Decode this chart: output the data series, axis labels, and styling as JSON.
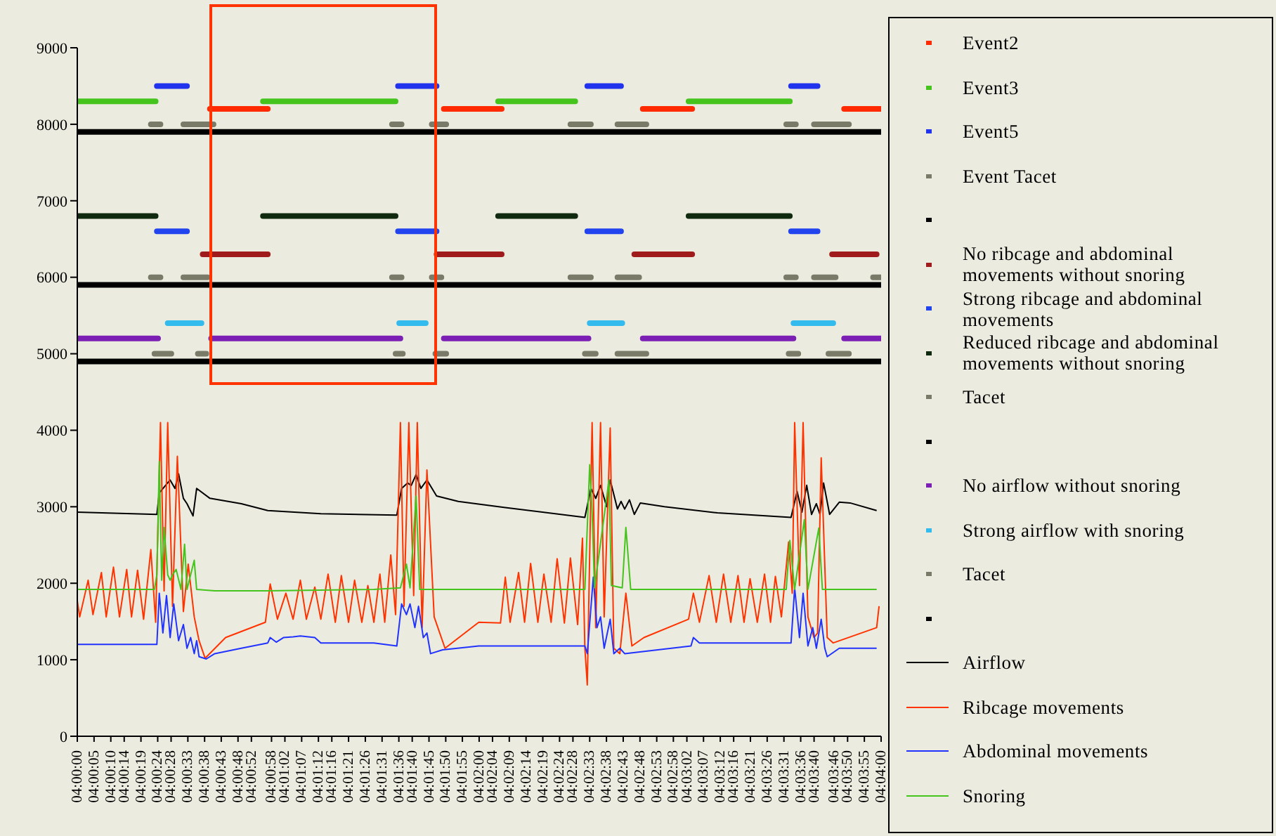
{
  "chart_data": {
    "type": "line",
    "xlim": [
      4.0,
      4.06667
    ],
    "xticks": [
      {
        "value": 4.0,
        "label": "04:00:00"
      },
      {
        "value": 4.00139,
        "label": "04:00:05"
      },
      {
        "value": 4.00278,
        "label": "04:00:10"
      },
      {
        "value": 4.00389,
        "label": "04:00:14"
      },
      {
        "value": 4.00528,
        "label": "04:00:19"
      },
      {
        "value": 4.00667,
        "label": "04:00:24"
      },
      {
        "value": 4.00778,
        "label": "04:00:28"
      },
      {
        "value": 4.00917,
        "label": "04:00:33"
      },
      {
        "value": 4.01056,
        "label": "04:00:38"
      },
      {
        "value": 4.01194,
        "label": "04:00:43"
      },
      {
        "value": 4.01333,
        "label": "04:00:48"
      },
      {
        "value": 4.01444,
        "label": "04:00:52"
      },
      {
        "value": 4.01611,
        "label": "04:00:58"
      },
      {
        "value": 4.01722,
        "label": "04:01:02"
      },
      {
        "value": 4.01861,
        "label": "04:01:07"
      },
      {
        "value": 4.02,
        "label": "04:01:12"
      },
      {
        "value": 4.02111,
        "label": "04:01:16"
      },
      {
        "value": 4.0225,
        "label": "04:01:21"
      },
      {
        "value": 4.02389,
        "label": "04:01:26"
      },
      {
        "value": 4.02528,
        "label": "04:01:31"
      },
      {
        "value": 4.02667,
        "label": "04:01:36"
      },
      {
        "value": 4.02778,
        "label": "04:01:40"
      },
      {
        "value": 4.02917,
        "label": "04:01:45"
      },
      {
        "value": 4.03056,
        "label": "04:01:50"
      },
      {
        "value": 4.03194,
        "label": "04:01:55"
      },
      {
        "value": 4.03333,
        "label": "04:02:00"
      },
      {
        "value": 4.03444,
        "label": "04:02:04"
      },
      {
        "value": 4.03583,
        "label": "04:02:09"
      },
      {
        "value": 4.03722,
        "label": "04:02:14"
      },
      {
        "value": 4.03861,
        "label": "04:02:19"
      },
      {
        "value": 4.04,
        "label": "04:02:24"
      },
      {
        "value": 4.04111,
        "label": "04:02:28"
      },
      {
        "value": 4.0425,
        "label": "04:02:33"
      },
      {
        "value": 4.04389,
        "label": "04:02:38"
      },
      {
        "value": 4.04528,
        "label": "04:02:43"
      },
      {
        "value": 4.04667,
        "label": "04:02:48"
      },
      {
        "value": 4.04806,
        "label": "04:02:53"
      },
      {
        "value": 4.04944,
        "label": "04:02:58"
      },
      {
        "value": 4.05056,
        "label": "04:03:02"
      },
      {
        "value": 4.05194,
        "label": "04:03:07"
      },
      {
        "value": 4.05333,
        "label": "04:03:12"
      },
      {
        "value": 4.05444,
        "label": "04:03:16"
      },
      {
        "value": 4.05583,
        "label": "04:03:21"
      },
      {
        "value": 4.05722,
        "label": "04:03:26"
      },
      {
        "value": 4.05861,
        "label": "04:03:31"
      },
      {
        "value": 4.06,
        "label": "04:03:36"
      },
      {
        "value": 4.06111,
        "label": "04:03:40"
      },
      {
        "value": 4.06278,
        "label": "04:03:46"
      },
      {
        "value": 4.06389,
        "label": "04:03:50"
      },
      {
        "value": 4.06528,
        "label": "04:03:55"
      },
      {
        "value": 4.06667,
        "label": "04:04:00"
      }
    ],
    "ylim": [
      0,
      9000
    ],
    "yticks": [
      0,
      1000,
      2000,
      3000,
      4000,
      5000,
      6000,
      7000,
      8000,
      9000
    ],
    "legend": "right",
    "series": [
      {
        "name": "Event2",
        "color": "#ff2a00",
        "x": [
          4.011,
          4.0158,
          null,
          4.0304,
          4.0352,
          null,
          4.0469,
          4.051,
          null,
          4.0636,
          4.06667
        ],
        "values": [
          8200,
          8200,
          null,
          8200,
          8200,
          null,
          8200,
          8200,
          null,
          8200,
          8200
        ]
      },
      {
        "name": "Event3",
        "color": "#44c41c",
        "x": [
          4.0,
          4.0065,
          null,
          4.0154,
          4.0264,
          null,
          4.0349,
          4.0413,
          null,
          4.0507,
          4.0591
        ],
        "values": [
          8300,
          8300,
          null,
          8300,
          8300,
          null,
          8300,
          8300,
          null,
          8300,
          8300
        ]
      },
      {
        "name": "Event5",
        "color": "#2233ee",
        "x": [
          4.0066,
          4.0091,
          null,
          4.0266,
          4.0298,
          null,
          4.0423,
          4.0451,
          null,
          4.0592,
          4.0614
        ],
        "values": [
          8500,
          8500,
          null,
          8500,
          8500,
          null,
          8500,
          8500,
          null,
          8500,
          8500
        ]
      },
      {
        "name": "Event Tacet",
        "color": "#7a7a68",
        "x": [
          4.0061,
          4.0069,
          null,
          4.0088,
          4.0113,
          null,
          4.0261,
          4.0269,
          null,
          4.0294,
          4.0306,
          null,
          4.0409,
          4.0426,
          null,
          4.0448,
          4.0472,
          null,
          4.0588,
          4.0596,
          null,
          4.0611,
          4.064
        ],
        "values": [
          8000,
          8000,
          null,
          8000,
          8000,
          null,
          8000,
          8000,
          null,
          8000,
          8000,
          null,
          8000,
          8000,
          null,
          8000,
          8000,
          null,
          8000,
          8000,
          null,
          8000,
          8000
        ]
      },
      {
        "color": "#000000",
        "x": [
          4.0,
          4.06667
        ],
        "values": [
          7900,
          7900
        ]
      },
      {
        "name": "No ribcage and abdominal movements without snoring",
        "color": "#a01c1c",
        "x": [
          4.0104,
          4.0158,
          null,
          4.0298,
          4.0352,
          null,
          4.0462,
          4.051,
          null,
          4.0626,
          4.0663
        ],
        "values": [
          6300,
          6300,
          null,
          6300,
          6300,
          null,
          6300,
          6300,
          null,
          6300,
          6300
        ]
      },
      {
        "name": "Strong ribcage and abdominal movements",
        "color": "#2244ee",
        "x": [
          4.0066,
          4.0091,
          null,
          4.0266,
          4.0298,
          null,
          4.0423,
          4.0451,
          null,
          4.0592,
          4.0614
        ],
        "values": [
          6600,
          6600,
          null,
          6600,
          6600,
          null,
          6600,
          6600,
          null,
          6600,
          6600
        ]
      },
      {
        "name": "Reduced ribcage and abdominal movements without snoring",
        "color": "#0f2a0f",
        "x": [
          4.0,
          4.0065,
          null,
          4.0154,
          4.0264,
          null,
          4.0349,
          4.0413,
          null,
          4.0507,
          4.0591
        ],
        "values": [
          6800,
          6800,
          null,
          6800,
          6800,
          null,
          6800,
          6800,
          null,
          6800,
          6800
        ]
      },
      {
        "name": "Tacet",
        "color": "#7a7a68",
        "x": [
          4.0061,
          4.0069,
          null,
          4.0088,
          4.0108,
          null,
          4.0261,
          4.0269,
          null,
          4.0294,
          4.0302,
          null,
          4.0409,
          4.0426,
          null,
          4.0448,
          4.0466,
          null,
          4.0588,
          4.0596,
          null,
          4.0611,
          4.0629,
          null,
          4.066,
          4.06667
        ],
        "values": [
          6000,
          6000,
          null,
          6000,
          6000,
          null,
          6000,
          6000,
          null,
          6000,
          6000,
          null,
          6000,
          6000,
          null,
          6000,
          6000,
          null,
          6000,
          6000,
          null,
          6000,
          6000,
          null,
          6000,
          6000
        ]
      },
      {
        "color": "#000000",
        "x": [
          4.0,
          4.06667
        ],
        "values": [
          5900,
          5900
        ]
      },
      {
        "name": "No airflow without snoring",
        "color": "#7b1fb5",
        "x": [
          4.0,
          4.0067,
          null,
          4.0111,
          4.0268,
          null,
          4.0304,
          4.0424,
          null,
          4.0469,
          4.0594,
          null,
          4.0636,
          4.06667
        ],
        "values": [
          5200,
          5200,
          null,
          5200,
          5200,
          null,
          5200,
          5200,
          null,
          5200,
          5200,
          null,
          5200,
          5200
        ]
      },
      {
        "name": "Strong airflow with snoring",
        "color": "#33bbee",
        "x": [
          4.0075,
          4.0103,
          null,
          4.0267,
          4.0289,
          null,
          4.0425,
          4.0452,
          null,
          4.0594,
          4.0627
        ],
        "values": [
          5400,
          5400,
          null,
          5400,
          5400,
          null,
          5400,
          5400,
          null,
          5400,
          5400
        ]
      },
      {
        "name": "Tacet",
        "color": "#7a7a68",
        "x": [
          4.0064,
          4.0078,
          null,
          4.01,
          4.0107,
          null,
          4.0264,
          4.027,
          null,
          4.0297,
          4.0306,
          null,
          4.0421,
          4.043,
          null,
          4.0448,
          4.0472,
          null,
          4.059,
          4.0598,
          null,
          4.0623,
          4.064
        ],
        "values": [
          5000,
          5000,
          null,
          5000,
          5000,
          null,
          5000,
          5000,
          null,
          5000,
          5000,
          null,
          5000,
          5000,
          null,
          5000,
          5000,
          null,
          5000,
          5000,
          null,
          5000,
          5000
        ]
      },
      {
        "color": "#000000",
        "x": [
          4.0,
          4.06667
        ],
        "values": [
          4900,
          4900
        ]
      },
      {
        "name": "Airflow",
        "color": "#000000",
        "x": [
          4.0,
          4.0066,
          4.0068,
          4.0077,
          4.0081,
          4.0084,
          4.0088,
          4.0091,
          4.0096,
          4.0099,
          4.011,
          4.0136,
          4.0158,
          4.0202,
          4.0265,
          4.0269,
          4.0274,
          4.0277,
          4.0281,
          4.0285,
          4.029,
          4.0298,
          4.0316,
          4.0355,
          4.0421,
          4.0426,
          4.043,
          4.0434,
          4.0439,
          4.0442,
          4.0448,
          4.0451,
          4.0454,
          4.0458,
          4.0462,
          4.0467,
          4.0487,
          4.0531,
          4.0592,
          4.0597,
          4.0601,
          4.0605,
          4.0609,
          4.0613,
          4.0616,
          4.0619,
          4.0624,
          4.0632,
          4.0641,
          4.0663
        ],
        "values": [
          2930,
          2900,
          3180,
          3350,
          3240,
          3430,
          3110,
          3040,
          2880,
          3240,
          3110,
          3040,
          2950,
          2910,
          2890,
          3240,
          3310,
          3280,
          3420,
          3240,
          3350,
          3140,
          3070,
          2990,
          2860,
          3240,
          3110,
          3280,
          3000,
          3350,
          2970,
          3070,
          2970,
          3090,
          2900,
          3050,
          3000,
          2920,
          2860,
          3200,
          2930,
          3280,
          2900,
          3040,
          2900,
          3310,
          2900,
          3060,
          3050,
          2950
        ]
      },
      {
        "name": "Ribcage movements",
        "color": "#ff3300",
        "x": [
          4.0,
          4.0002,
          4.0009,
          4.0013,
          4.002,
          4.0024,
          4.003,
          4.0035,
          4.0041,
          4.0045,
          4.005,
          4.0055,
          4.0061,
          4.0065,
          4.0069,
          4.0072,
          4.0075,
          4.0079,
          4.0083,
          4.0088,
          4.0092,
          4.0097,
          4.0101,
          4.0106,
          4.0123,
          4.0156,
          4.016,
          4.0166,
          4.0173,
          4.0179,
          4.0185,
          4.019,
          4.0197,
          4.0202,
          4.0208,
          4.0214,
          4.0219,
          4.0225,
          4.023,
          4.0236,
          4.0241,
          4.0246,
          4.0251,
          4.0255,
          4.026,
          4.0264,
          4.0268,
          4.0271,
          4.0275,
          4.0279,
          4.0282,
          4.0286,
          4.029,
          4.0296,
          4.0305,
          4.0333,
          4.0351,
          4.0355,
          4.0359,
          4.0366,
          4.0371,
          4.0376,
          4.0382,
          4.0387,
          4.0393,
          4.0398,
          4.0404,
          4.0409,
          4.0415,
          4.0419,
          4.0421,
          4.0423,
          4.0427,
          4.043,
          4.0434,
          4.0437,
          4.0442,
          4.0445,
          4.045,
          4.0455,
          4.046,
          4.047,
          4.0507,
          4.0511,
          4.0516,
          4.0524,
          4.053,
          4.0536,
          4.0542,
          4.0548,
          4.0553,
          4.0558,
          4.0564,
          4.057,
          4.0575,
          4.0579,
          4.0584,
          4.059,
          4.0593,
          4.0595,
          4.0599,
          4.0602,
          4.0606,
          4.0611,
          4.0614,
          4.0617,
          4.0622,
          4.0627,
          4.0663,
          4.0665
        ],
        "values": [
          1770,
          1560,
          2040,
          1590,
          2140,
          1560,
          2210,
          1560,
          2180,
          1560,
          2170,
          1530,
          2440,
          1490,
          4100,
          1900,
          4100,
          1700,
          3660,
          1630,
          2250,
          1560,
          1250,
          1020,
          1290,
          1490,
          1990,
          1530,
          1870,
          1530,
          2040,
          1530,
          1950,
          1530,
          2120,
          1490,
          2100,
          1490,
          2040,
          1490,
          1970,
          1490,
          2120,
          1490,
          2370,
          1590,
          4100,
          1700,
          4100,
          1840,
          4100,
          1420,
          3480,
          1560,
          1150,
          1490,
          1480,
          2080,
          1490,
          2140,
          1490,
          2260,
          1490,
          2120,
          1490,
          2320,
          1480,
          2330,
          1460,
          2590,
          1150,
          670,
          4100,
          1420,
          4100,
          1560,
          4030,
          1150,
          1080,
          1870,
          1180,
          1290,
          1530,
          1870,
          1490,
          2100,
          1490,
          2120,
          1490,
          2100,
          1490,
          2060,
          1490,
          2120,
          1490,
          2090,
          1560,
          2540,
          1870,
          4100,
          1970,
          4100,
          1560,
          1290,
          1350,
          3640,
          1290,
          1220,
          1420,
          1700
        ]
      },
      {
        "name": "Abdominal movements",
        "color": "#2233ff",
        "x": [
          4.0,
          4.0066,
          4.0068,
          4.0071,
          4.0074,
          4.0077,
          4.008,
          4.0084,
          4.0088,
          4.0091,
          4.0094,
          4.0097,
          4.0099,
          4.0101,
          4.0107,
          4.0114,
          4.0136,
          4.0158,
          4.016,
          4.0165,
          4.0171,
          4.0179,
          4.0185,
          4.0197,
          4.0202,
          4.0246,
          4.0265,
          4.0269,
          4.0273,
          4.0276,
          4.028,
          4.0283,
          4.0287,
          4.029,
          4.0293,
          4.0303,
          4.0333,
          4.0421,
          4.0423,
          4.0428,
          4.0431,
          4.0434,
          4.0437,
          4.0442,
          4.0445,
          4.045,
          4.0454,
          4.0509,
          4.0511,
          4.0516,
          4.0592,
          4.0595,
          4.0599,
          4.0602,
          4.0606,
          4.061,
          4.0613,
          4.0617,
          4.062,
          4.0622,
          4.0632,
          4.0663
        ],
        "values": [
          1200,
          1200,
          1870,
          1350,
          1840,
          1290,
          1730,
          1250,
          1460,
          1150,
          1290,
          1080,
          1250,
          1040,
          1010,
          1080,
          1150,
          1220,
          1290,
          1230,
          1290,
          1300,
          1310,
          1290,
          1220,
          1220,
          1180,
          1730,
          1590,
          1730,
          1420,
          1700,
          1290,
          1350,
          1080,
          1130,
          1180,
          1180,
          1080,
          2080,
          1420,
          1560,
          1150,
          1530,
          1080,
          1150,
          1080,
          1180,
          1290,
          1220,
          1220,
          1940,
          1290,
          1870,
          1180,
          1420,
          1150,
          1530,
          1150,
          1040,
          1150,
          1150
        ]
      },
      {
        "name": "Snoring",
        "color": "#44c41c",
        "x": [
          4.0,
          4.0064,
          4.0066,
          4.0068,
          4.007,
          4.0072,
          4.0075,
          4.0077,
          4.0079,
          4.0082,
          4.0086,
          4.0089,
          4.0091,
          4.0097,
          4.0099,
          4.0114,
          4.0158,
          4.0246,
          4.0268,
          4.0273,
          4.0276,
          4.0281,
          4.0284,
          4.0421,
          4.0425,
          4.0427,
          4.0429,
          4.0441,
          4.0443,
          4.0452,
          4.0455,
          4.0459,
          4.0588,
          4.0591,
          4.0595,
          4.0603,
          4.0606,
          4.0615,
          4.0618,
          4.0663
        ],
        "values": [
          1920,
          1920,
          2110,
          3590,
          2040,
          2730,
          2110,
          2040,
          2110,
          2180,
          1920,
          2510,
          1920,
          2300,
          1920,
          1900,
          1900,
          1920,
          1940,
          2250,
          1940,
          3140,
          1920,
          1920,
          3550,
          2930,
          1940,
          3350,
          1970,
          1940,
          2730,
          1920,
          1920,
          2560,
          1920,
          2830,
          1920,
          2720,
          1920,
          1920
        ]
      }
    ]
  }
}
